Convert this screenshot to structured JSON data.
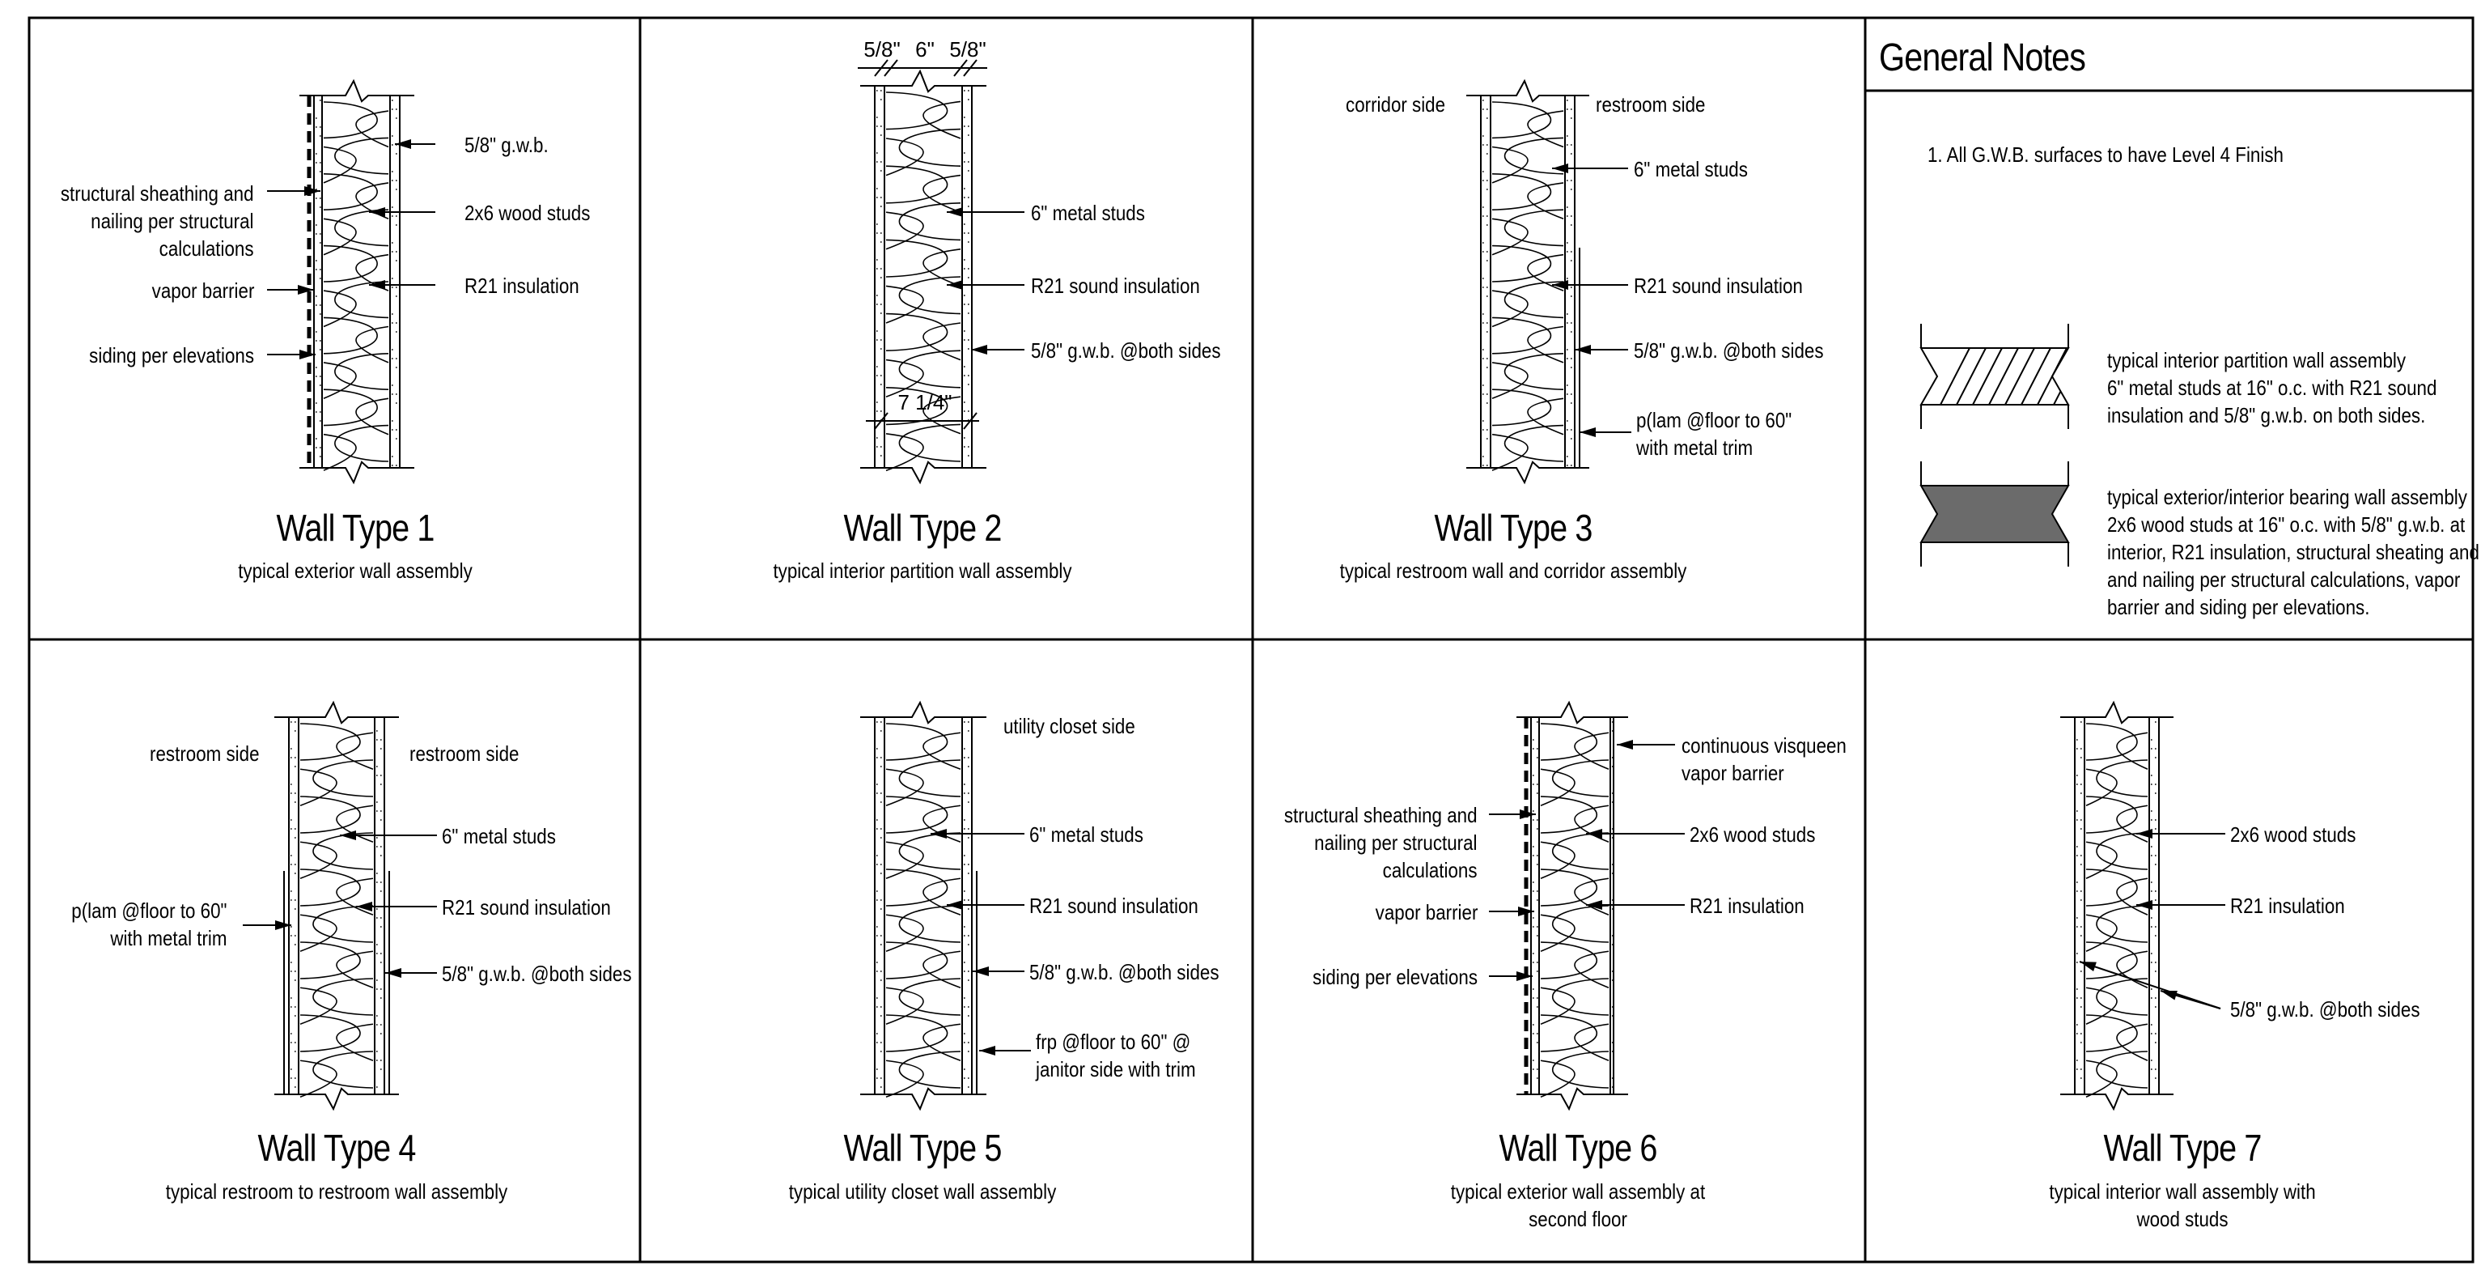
{
  "general_notes": {
    "title": "General Notes",
    "note_1": "1.  All G.W.B. surfaces to have Level 4 Finish",
    "legend": [
      {
        "pattern": "hatched",
        "lines": [
          "typical interior partition wall assembly",
          "6\" metal studs at 16\" o.c. with R21 sound",
          "insulation and 5/8\" g.w.b. on both sides."
        ]
      },
      {
        "pattern": "solid-gray",
        "lines": [
          "typical exterior/interior bearing wall assembly",
          "2x6 wood studs at 16\" o.c. with 5/8\" g.w.b. at",
          "interior, R21 insulation, structural sheating and",
          "and nailing per structural calculations, vapor",
          "barrier and siding per elevations."
        ]
      }
    ]
  },
  "walls": [
    {
      "title": "Wall Type 1",
      "subtitle": [
        "typical exterior wall assembly"
      ],
      "left_labels": [
        [
          "structural sheathing and",
          "nailing per structural",
          "calculations"
        ],
        [
          "vapor barrier"
        ],
        [
          "siding per elevations"
        ]
      ],
      "right_labels": [
        [
          "5/8\" g.w.b."
        ],
        [
          "2x6 wood studs"
        ],
        [
          "R21 insulation"
        ]
      ]
    },
    {
      "title": "Wall Type 2",
      "subtitle": [
        "typical interior partition wall assembly"
      ],
      "dims": [
        "5/8\"",
        "6\"",
        "5/8\"",
        "7 1/4\""
      ],
      "right_labels": [
        [
          "6\" metal studs"
        ],
        [
          "R21 sound insulation"
        ],
        [
          "5/8\" g.w.b. @both sides"
        ]
      ]
    },
    {
      "title": "Wall Type 3",
      "subtitle": [
        "typical restroom wall and corridor assembly"
      ],
      "side_left": "corridor side",
      "side_right": "restroom side",
      "right_labels": [
        [
          "6\" metal studs"
        ],
        [
          "R21 sound insulation"
        ],
        [
          "5/8\" g.w.b. @both sides"
        ],
        [
          "p(lam @floor to 60\"",
          "with metal trim"
        ]
      ]
    },
    {
      "title": "Wall Type 4",
      "subtitle": [
        "typical restroom to restroom wall assembly"
      ],
      "side_left": "restroom side",
      "side_right": "restroom side",
      "left_labels": [
        [
          "p(lam @floor to 60\"",
          "with metal trim"
        ]
      ],
      "right_labels": [
        [
          "6\" metal studs"
        ],
        [
          "R21 sound insulation"
        ],
        [
          "5/8\" g.w.b. @both sides"
        ]
      ]
    },
    {
      "title": "Wall Type 5",
      "subtitle": [
        "typical utility closet wall assembly"
      ],
      "side_right": "utility closet side",
      "right_labels": [
        [
          "6\" metal studs"
        ],
        [
          "R21 sound insulation"
        ],
        [
          "5/8\" g.w.b. @both sides"
        ],
        [
          "frp @floor to 60\"  @",
          "janitor side with trim"
        ]
      ]
    },
    {
      "title": "Wall Type 6",
      "subtitle": [
        "typical exterior wall assembly at",
        "second floor"
      ],
      "left_labels": [
        [
          "structural sheathing and",
          "nailing per structural",
          "calculations"
        ],
        [
          "vapor barrier"
        ],
        [
          "siding per elevations"
        ]
      ],
      "right_labels": [
        [
          "continuous visqueen",
          "vapor barrier"
        ],
        [
          "2x6 wood studs"
        ],
        [
          "R21 insulation"
        ]
      ]
    },
    {
      "title": "Wall Type 7",
      "subtitle": [
        "typical interior wall assembly with",
        "wood studs"
      ],
      "right_labels": [
        [
          "2x6 wood studs"
        ],
        [
          "R21 insulation"
        ],
        [
          "5/8\" g.w.b. @both sides"
        ]
      ]
    }
  ]
}
